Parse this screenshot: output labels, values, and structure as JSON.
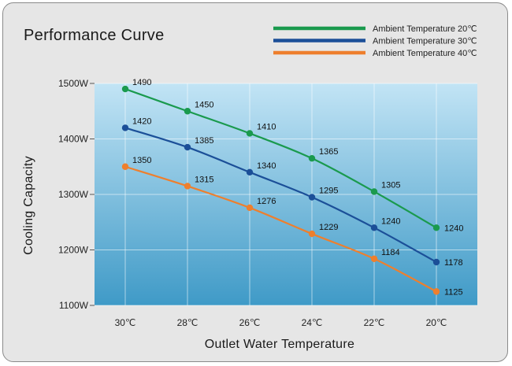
{
  "chart_data": {
    "type": "line",
    "title": "Performance Curve",
    "xlabel": "Outlet Water Temperature",
    "ylabel": "Cooling Capacity",
    "categories": [
      "30℃",
      "28℃",
      "26℃",
      "24℃",
      "22℃",
      "20℃"
    ],
    "y_ticks": [
      "1100W",
      "1200W",
      "1300W",
      "1400W",
      "1500W"
    ],
    "ylim": [
      1100,
      1500
    ],
    "grid": true,
    "legend_position": "top-right",
    "series": [
      {
        "name": "Ambient Temperature 20℃",
        "color": "#1a9a4e",
        "values": [
          1490,
          1450,
          1410,
          1365,
          1305,
          1240
        ]
      },
      {
        "name": "Ambient Temperature 30℃",
        "color": "#1b4f98",
        "values": [
          1420,
          1385,
          1340,
          1295,
          1240,
          1178
        ]
      },
      {
        "name": "Ambient Temperature 40℃",
        "color": "#ee7f2d",
        "values": [
          1350,
          1315,
          1276,
          1229,
          1184,
          1125
        ]
      }
    ]
  }
}
